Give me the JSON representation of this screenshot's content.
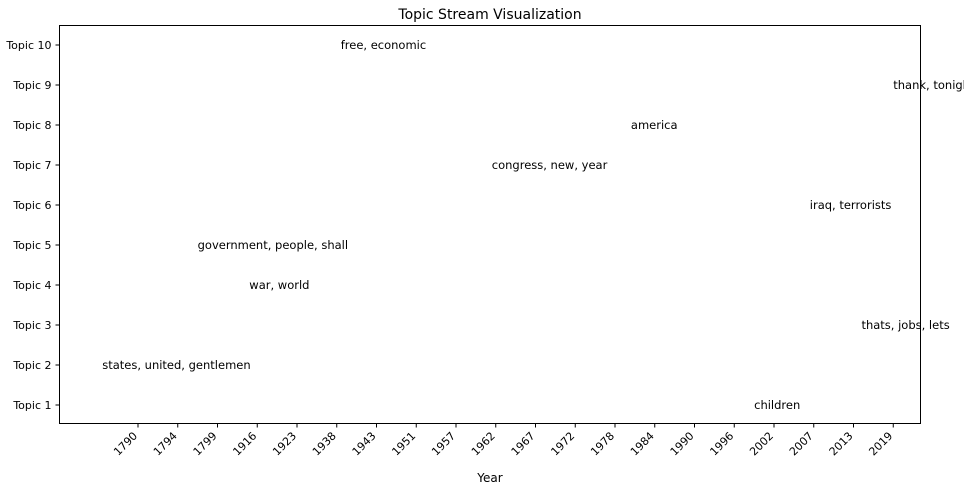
{
  "chart_data": {
    "type": "scatter",
    "title": "Topic Stream Visualization",
    "xlabel": "Year",
    "ylabel": "",
    "grid": false,
    "x_ticks": [
      "1790",
      "1794",
      "1799",
      "1916",
      "1923",
      "1938",
      "1943",
      "1951",
      "1957",
      "1962",
      "1967",
      "1972",
      "1978",
      "1984",
      "1990",
      "1996",
      "2002",
      "2007",
      "2013",
      "2019"
    ],
    "y_ticks": [
      "Topic 1",
      "Topic 2",
      "Topic 3",
      "Topic 4",
      "Topic 5",
      "Topic 6",
      "Topic 7",
      "Topic 8",
      "Topic 9",
      "Topic 10"
    ],
    "annotations": [
      {
        "topic": "Topic 1",
        "x_index": 15.5,
        "text": "children"
      },
      {
        "topic": "Topic 2",
        "x_index": -0.9,
        "text": "states, united, gentlemen"
      },
      {
        "topic": "Topic 3",
        "x_index": 18.2,
        "text": "thats, jobs, lets"
      },
      {
        "topic": "Topic 4",
        "x_index": 2.8,
        "text": "war, world"
      },
      {
        "topic": "Topic 5",
        "x_index": 1.5,
        "text": "government, people, shall"
      },
      {
        "topic": "Topic 6",
        "x_index": 16.9,
        "text": "iraq, terrorists"
      },
      {
        "topic": "Topic 7",
        "x_index": 8.9,
        "text": "congress, new, year"
      },
      {
        "topic": "Topic 8",
        "x_index": 12.4,
        "text": "america"
      },
      {
        "topic": "Topic 9",
        "x_index": 19.0,
        "text": "thank, tonight, american"
      },
      {
        "topic": "Topic 10",
        "x_index": 5.1,
        "text": "free, economic"
      }
    ]
  }
}
